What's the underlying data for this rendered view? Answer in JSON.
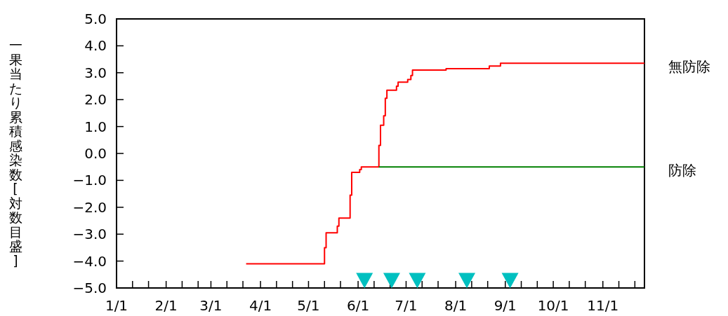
{
  "chart_data": {
    "type": "step",
    "ylabel": "一果当たり累積感染数[対数目盛]",
    "xlim": [
      "--01-01",
      "--11-27"
    ],
    "xticks": [
      {
        "value": "--01-01",
        "label": "1/1"
      },
      {
        "value": "--01-11",
        "label": null
      },
      {
        "value": "--01-21",
        "label": null
      },
      {
        "value": "--02-01",
        "label": "2/1"
      },
      {
        "value": "--02-11",
        "label": null
      },
      {
        "value": "--02-21",
        "label": null
      },
      {
        "value": "--03-01",
        "label": "3/1"
      },
      {
        "value": "--03-11",
        "label": null
      },
      {
        "value": "--03-21",
        "label": null
      },
      {
        "value": "--04-01",
        "label": "4/1"
      },
      {
        "value": "--04-11",
        "label": null
      },
      {
        "value": "--04-21",
        "label": null
      },
      {
        "value": "--05-01",
        "label": "5/1"
      },
      {
        "value": "--05-11",
        "label": null
      },
      {
        "value": "--05-21",
        "label": null
      },
      {
        "value": "--06-01",
        "label": "6/1"
      },
      {
        "value": "--06-11",
        "label": null
      },
      {
        "value": "--06-21",
        "label": null
      },
      {
        "value": "--07-01",
        "label": "7/1"
      },
      {
        "value": "--07-11",
        "label": null
      },
      {
        "value": "--07-21",
        "label": null
      },
      {
        "value": "--08-01",
        "label": "8/1"
      },
      {
        "value": "--08-11",
        "label": null
      },
      {
        "value": "--08-21",
        "label": null
      },
      {
        "value": "--09-01",
        "label": "9/1"
      },
      {
        "value": "--09-11",
        "label": null
      },
      {
        "value": "--09-21",
        "label": null
      },
      {
        "value": "--10-01",
        "label": "10/1"
      },
      {
        "value": "--10-11",
        "label": null
      },
      {
        "value": "--10-21",
        "label": null
      },
      {
        "value": "--11-01",
        "label": "11/1"
      },
      {
        "value": "--11-11",
        "label": null
      },
      {
        "value": "--11-21",
        "label": null
      }
    ],
    "ylim": [
      -5,
      5
    ],
    "yticks": [
      {
        "value": 5,
        "label": "5.0"
      },
      {
        "value": 4,
        "label": "4.0"
      },
      {
        "value": 3,
        "label": "3.0"
      },
      {
        "value": 2,
        "label": "2.0"
      },
      {
        "value": 1,
        "label": "1.0"
      },
      {
        "value": 0,
        "label": "0.0"
      },
      {
        "value": -1,
        "label": "−1.0"
      },
      {
        "value": -2,
        "label": "−2.0"
      },
      {
        "value": -3,
        "label": "−3.0"
      },
      {
        "value": -4,
        "label": "−4.0"
      },
      {
        "value": -5,
        "label": "−5.0"
      }
    ],
    "grid": false,
    "legend": false,
    "series": [
      {
        "name": "無防除",
        "color": "#ff0000",
        "x": [
          "--03-23",
          "--05-11",
          "--05-12",
          "--05-19",
          "--05-20",
          "--05-27",
          "--05-28",
          "--06-02",
          "--06-03",
          "--06-14",
          "--06-15",
          "--06-17",
          "--06-18",
          "--06-19",
          "--06-25",
          "--06-26",
          "--07-02",
          "--07-04",
          "--07-05",
          "--07-26",
          "--08-22",
          "--08-29",
          "--11-27"
        ],
        "values": [
          -4.1,
          -3.5,
          -2.95,
          -2.7,
          -2.4,
          -1.55,
          -0.7,
          -0.6,
          -0.5,
          0.3,
          1.05,
          1.4,
          2.05,
          2.35,
          2.5,
          2.65,
          2.75,
          2.9,
          3.1,
          3.15,
          3.25,
          3.35,
          3.35
        ]
      },
      {
        "name": "防除",
        "color": "#008000",
        "x": [
          "--06-14",
          "--11-27"
        ],
        "values": [
          -0.5,
          -0.5
        ]
      },
      {
        "type": "scatter",
        "marker": "triangle",
        "color": "#00c0c0",
        "x": [
          "--06-05",
          "--06-22",
          "--07-08",
          "--08-08",
          "--09-04"
        ],
        "values": [
          -4.7,
          -4.7,
          -4.7,
          -4.7,
          -4.7
        ]
      }
    ]
  }
}
